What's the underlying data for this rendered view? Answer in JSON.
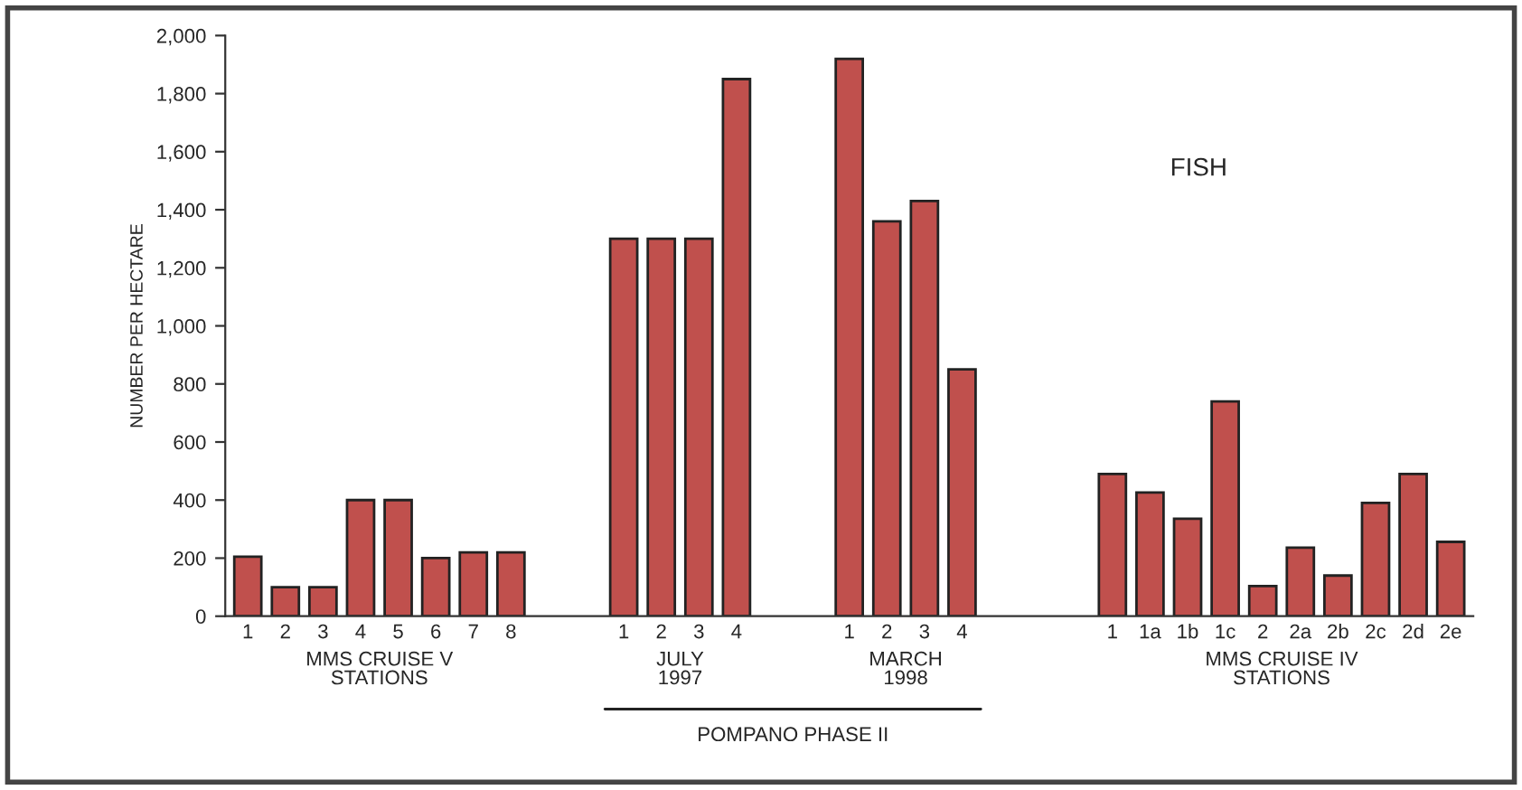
{
  "chart_data": {
    "type": "bar",
    "ylabel": "NUMBER PER HECTARE",
    "categories": [
      "1",
      "2",
      "3",
      "4",
      "5",
      "6",
      "7",
      "8",
      null,
      null,
      "1",
      "2",
      "3",
      "4",
      null,
      null,
      "1",
      "2",
      "3",
      "4",
      null,
      null,
      null,
      "1",
      "1a",
      "1b",
      "1c",
      "2",
      "2a",
      "2b",
      "2c",
      "2d",
      "2e"
    ],
    "values": [
      205,
      100,
      100,
      400,
      400,
      200,
      220,
      220,
      null,
      null,
      1300,
      1300,
      1300,
      1850,
      null,
      null,
      1920,
      1360,
      1430,
      850,
      null,
      null,
      null,
      490,
      426,
      336,
      740,
      104,
      236,
      140,
      390,
      490,
      256
    ],
    "color": "#c0504d",
    "ylim": [
      0,
      2000
    ],
    "yticks": [
      0,
      200,
      400,
      600,
      800,
      {
        "value": 1000,
        "label": "1,000"
      },
      {
        "value": 1200,
        "label": "1,200"
      },
      {
        "value": 1400,
        "label": "1,400"
      },
      {
        "value": 1600,
        "label": "1,600"
      },
      {
        "value": 1800,
        "label": "1,800"
      },
      {
        "value": 2000,
        "label": "2,000"
      }
    ],
    "annotations": [
      "MMS CRUISE V\nSTATIONS",
      "JULY\n1997",
      "MARCH\n1998",
      "MMS CRUISE IV\nSTATIONS",
      "POMPANO PHASE II",
      "FISH"
    ],
    "grid": false,
    "legend": false
  }
}
